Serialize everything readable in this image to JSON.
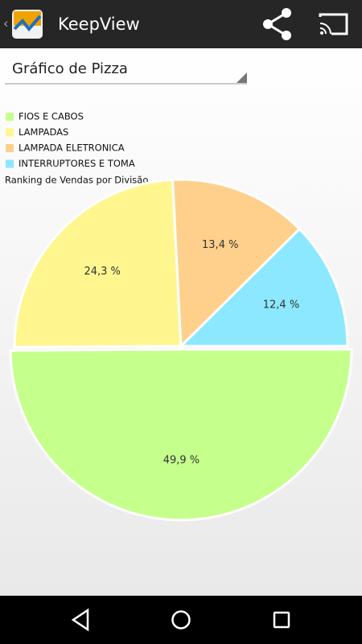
{
  "header": {
    "title": "KeepView"
  },
  "spinner": {
    "label": "Gráfico de Pizza"
  },
  "chart_data": {
    "type": "pie",
    "subtitle": "Ranking de Vendas por Divisão",
    "categories": [
      "FIOS E CABOS",
      "LAMPADAS",
      "LAMPADA ELETRONICA",
      "INTERRUPTORES E TOMA"
    ],
    "values": [
      49.9,
      24.3,
      13.4,
      12.4
    ],
    "value_labels": [
      "49,9 %",
      "24,3 %",
      "13,4 %",
      "12,4 %"
    ],
    "colors": [
      "#c5ff8c",
      "#fff68f",
      "#ffd08c",
      "#8ce8ff"
    ]
  }
}
